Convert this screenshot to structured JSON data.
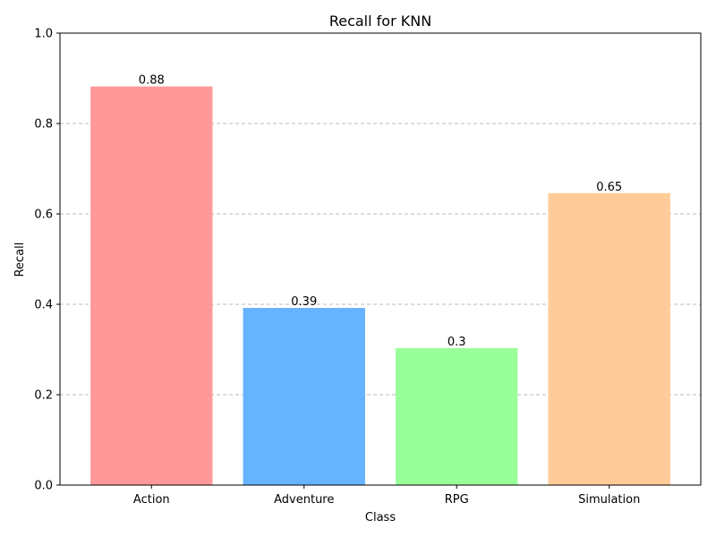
{
  "chart_data": {
    "type": "bar",
    "title": "Recall for KNN",
    "xlabel": "Class",
    "ylabel": "Recall",
    "categories": [
      "Action",
      "Adventure",
      "RPG",
      "Simulation"
    ],
    "values": [
      0.882,
      0.392,
      0.303,
      0.646
    ],
    "value_labels": [
      "0.88",
      "0.39",
      "0.3",
      "0.65"
    ],
    "colors": [
      "#ff9999",
      "#66b3ff",
      "#99ff99",
      "#ffcc99"
    ],
    "ylim": [
      0,
      1.0
    ],
    "yticks": [
      0.0,
      0.2,
      0.4,
      0.6,
      0.8,
      1.0
    ],
    "ytick_labels": [
      "0.0",
      "0.2",
      "0.4",
      "0.6",
      "0.8",
      "1.0"
    ],
    "grid": "y-axis dashed",
    "legend": "none"
  }
}
